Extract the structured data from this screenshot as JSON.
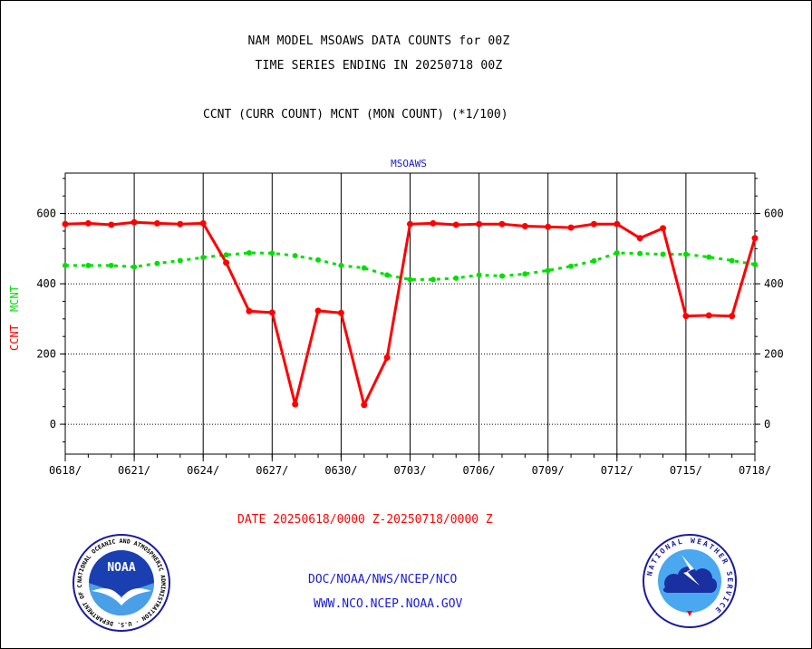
{
  "header": {
    "title_line1": "NAM MODEL MSOAWS DATA COUNTS for 00Z",
    "title_line2": "TIME SERIES ENDING IN 20250718 00Z",
    "subtitle": "CCNT (CURR COUNT) MCNT (MON COUNT) (*1/100)"
  },
  "footer": {
    "date_range": "DATE 20250618/0000 Z-20250718/0000 Z",
    "link1": "DOC/NOAA/NWS/NCEP/NCO",
    "link2": "WWW.NCO.NCEP.NOAA.GOV"
  },
  "logos": {
    "noaa_text": "NOAA",
    "noaa_ring": "NATIONAL OCEANIC AND ATMOSPHERIC ADMINISTRATION · U.S. DEPARTMENT OF COMMERCE ·",
    "nws_ring": "NATIONAL WEATHER SERVICE"
  },
  "chart_data": {
    "type": "line",
    "title": "MSOAWS",
    "ylabel_series1": "CCNT",
    "ylabel_series2": "MCNT",
    "xlim": [
      0,
      30
    ],
    "ylim": [
      -85,
      715
    ],
    "yticks": [
      0,
      200,
      400,
      600
    ],
    "xtick_labels": [
      "0618/",
      "0621/",
      "0624/",
      "0627/",
      "0630/",
      "0703/",
      "0706/",
      "0709/",
      "0712/",
      "0715/",
      "0718/"
    ],
    "grid": true,
    "colors": {
      "ccnt": "#ff0000",
      "mcnt": "#00e000"
    },
    "x": [
      0,
      1,
      2,
      3,
      4,
      5,
      6,
      7,
      8,
      9,
      10,
      11,
      12,
      13,
      14,
      15,
      16,
      17,
      18,
      19,
      20,
      21,
      22,
      23,
      24,
      25,
      26,
      27,
      28,
      29,
      30
    ],
    "series": [
      {
        "name": "CCNT",
        "values": [
          570,
          572,
          568,
          575,
          572,
          570,
          572,
          460,
          322,
          318,
          57,
          323,
          317,
          55,
          190,
          570,
          572,
          568,
          570,
          570,
          564,
          562,
          560,
          570,
          570,
          530,
          558,
          308,
          310,
          308,
          530
        ]
      },
      {
        "name": "MCNT",
        "values": [
          452,
          452,
          452,
          448,
          458,
          466,
          475,
          482,
          488,
          487,
          480,
          468,
          452,
          445,
          425,
          412,
          412,
          416,
          425,
          422,
          428,
          438,
          450,
          465,
          488,
          486,
          484,
          484,
          476,
          466,
          455
        ]
      }
    ]
  }
}
